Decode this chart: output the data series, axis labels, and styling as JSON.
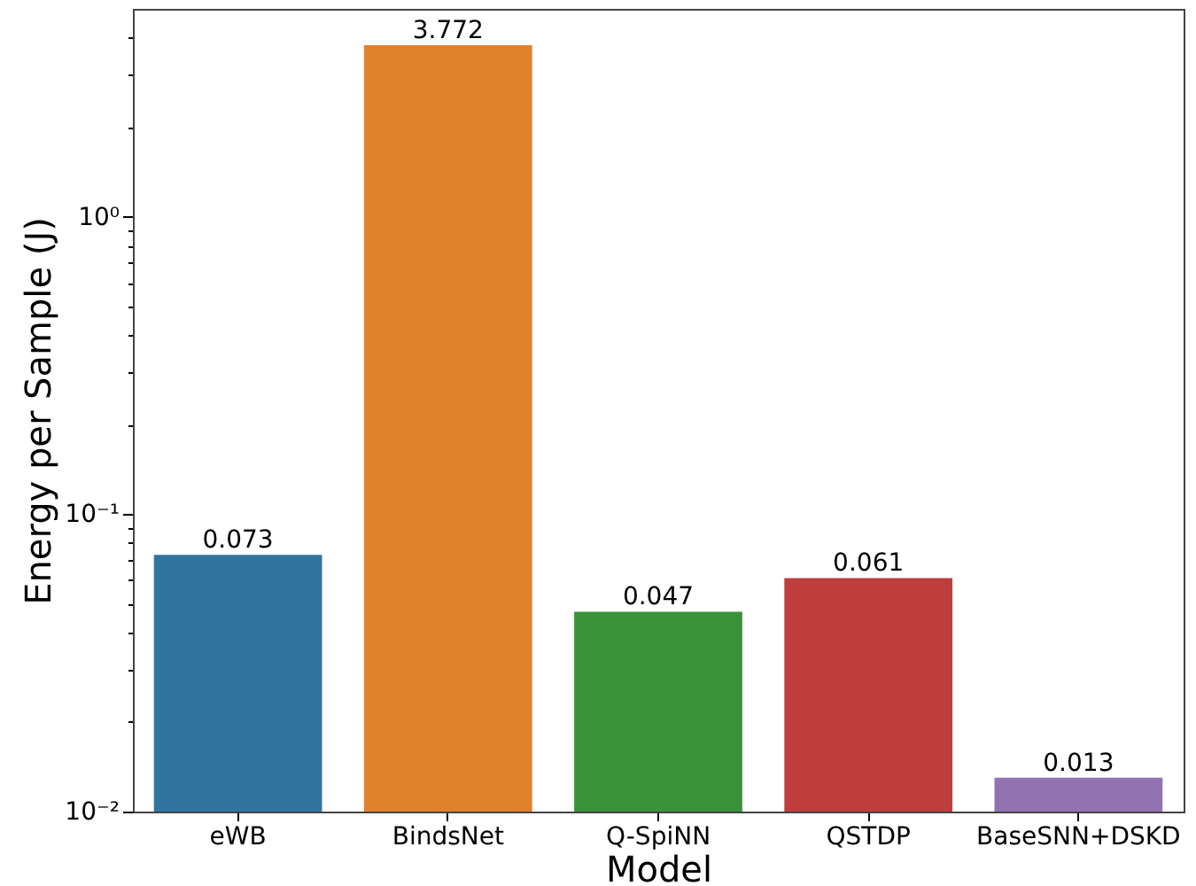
{
  "chart_data": {
    "type": "bar",
    "xlabel": "Model",
    "ylabel": "Energy per Sample (J)",
    "categories": [
      "eWB",
      "BindsNet",
      "Q-SpiNN",
      "QSTDP",
      "BaseSNN+DSKD"
    ],
    "values": [
      0.073,
      3.772,
      0.047,
      0.061,
      0.013
    ],
    "colors": [
      "#3274a1",
      "#e1812c",
      "#3a923a",
      "#c03d3e",
      "#9372b2"
    ],
    "log": "y",
    "ylim": [
      0.01,
      5
    ],
    "yticks": [
      {
        "value": 0.01,
        "label": "10⁻²"
      },
      {
        "value": 0.02,
        "label": null
      },
      {
        "value": 0.03,
        "label": null
      },
      {
        "value": 0.04,
        "label": null
      },
      {
        "value": 0.05,
        "label": null
      },
      {
        "value": 0.06,
        "label": null
      },
      {
        "value": 0.07,
        "label": null
      },
      {
        "value": 0.08,
        "label": null
      },
      {
        "value": 0.09,
        "label": null
      },
      {
        "value": 0.1,
        "label": "10⁻¹"
      },
      {
        "value": 0.2,
        "label": null
      },
      {
        "value": 0.3,
        "label": null
      },
      {
        "value": 0.4,
        "label": null
      },
      {
        "value": 0.5,
        "label": null
      },
      {
        "value": 0.6,
        "label": null
      },
      {
        "value": 0.7,
        "label": null
      },
      {
        "value": 0.8,
        "label": null
      },
      {
        "value": 0.9,
        "label": null
      },
      {
        "value": 1,
        "label": "10⁰"
      },
      {
        "value": 2,
        "label": null
      },
      {
        "value": 3,
        "label": null
      },
      {
        "value": 4,
        "label": null
      }
    ],
    "data_labels": true,
    "grid": false
  }
}
